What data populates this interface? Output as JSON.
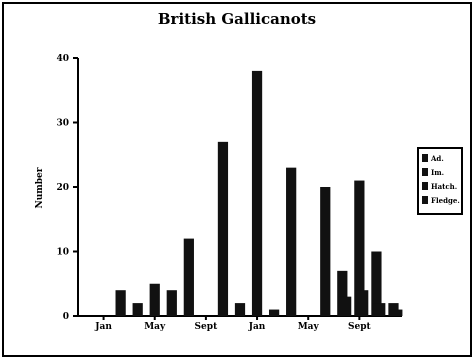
{
  "chart_data": {
    "type": "bar",
    "title": "British Gallicanots",
    "xlabel": "",
    "ylabel": "Number",
    "ylim": [
      0,
      40
    ],
    "yticks": [
      0,
      10,
      20,
      30,
      40
    ],
    "categories": [
      "1",
      "2",
      "3",
      "4",
      "5",
      "6",
      "7",
      "8",
      "9",
      "10",
      "11",
      "12",
      "13",
      "14",
      "15",
      "16",
      "17",
      "18",
      "19"
    ],
    "x_tick_labels": [
      {
        "label": "Jan",
        "at_category": 1
      },
      {
        "label": "May",
        "at_category": 4
      },
      {
        "label": "Sept",
        "at_category": 7
      },
      {
        "label": "Jan",
        "at_category": 10
      },
      {
        "label": "May",
        "at_category": 13
      },
      {
        "label": "Sept",
        "at_category": 16
      }
    ],
    "series": [
      {
        "values": [
          0,
          0,
          4,
          2,
          5,
          4,
          12,
          0,
          27,
          2,
          38,
          1,
          23,
          0,
          20,
          7,
          21,
          10,
          2
        ]
      },
      {
        "values": [
          0,
          0,
          0,
          0,
          0,
          0,
          0,
          0,
          0,
          0,
          0,
          0,
          0,
          0,
          0,
          3,
          4,
          2,
          1
        ]
      }
    ],
    "legend": {
      "placement": "right",
      "entries": [
        "Ad.",
        "Im.",
        "Hatch.",
        "Fledge."
      ]
    },
    "grid": false,
    "colors": {
      "bars": "#111111",
      "axes": "#000000",
      "frame": "#000000",
      "background": "#ffffff"
    }
  }
}
